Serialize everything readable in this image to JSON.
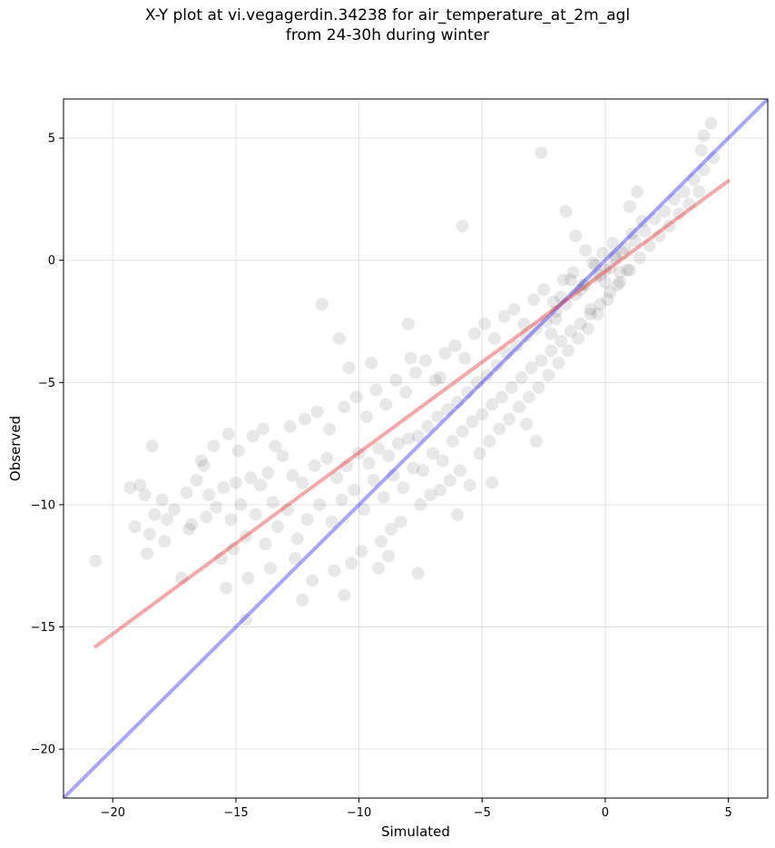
{
  "chart_data": {
    "type": "scatter",
    "title_lines": [
      "X-Y plot at vi.vegagerdin.34238 for air_temperature_at_2m_agl",
      "from 24-30h during winter"
    ],
    "xlabel": "Simulated",
    "ylabel": "Observed",
    "xlim": [
      -22,
      6.6
    ],
    "ylim": [
      -22,
      6.6
    ],
    "xticks": [
      -20,
      -15,
      -10,
      -5,
      0,
      5
    ],
    "yticks": [
      -20,
      -15,
      -10,
      -5,
      0,
      5
    ],
    "xtick_labels": [
      "−20",
      "−15",
      "−10",
      "−5",
      "0",
      "5"
    ],
    "ytick_labels": [
      "−20",
      "−15",
      "−10",
      "−5",
      "0",
      "5"
    ],
    "grid": true,
    "point_color": "#000000",
    "point_opacity": 0.09,
    "identity_line": {
      "color": "#0000ff",
      "x": [
        -22,
        6.6
      ],
      "y": [
        -22,
        6.6
      ]
    },
    "fit_line": {
      "color": "#ee2222",
      "x": [
        -20.7,
        5.0
      ],
      "y": [
        -15.8,
        3.25
      ]
    },
    "points": {
      "x": [
        -20.7,
        -19.3,
        -19.1,
        -18.9,
        -18.7,
        -18.5,
        -18.4,
        -18.3,
        -18.0,
        -17.8,
        -17.5,
        -17.2,
        -17.0,
        -16.8,
        -16.6,
        -16.3,
        -16.1,
        -15.8,
        -15.5,
        -15.2,
        -15.0,
        -14.8,
        -14.4,
        -14.0,
        -13.7,
        -13.5,
        -13.1,
        -12.7,
        -12.3,
        -11.8,
        -11.3,
        -10.9,
        -10.5,
        -10.0,
        -9.6,
        -9.2,
        -8.8,
        -8.4,
        -8.0,
        -7.6,
        -7.2,
        -6.8,
        -6.4,
        -6.0,
        -5.6,
        -5.2,
        -4.8,
        -4.4,
        -4.0,
        -3.6,
        -3.2,
        -2.8,
        -2.4,
        -2.0,
        -1.6,
        -1.2,
        -0.8,
        -0.4,
        0.0,
        0.4,
        0.8,
        1.2,
        1.6,
        2.0,
        2.4,
        2.8,
        3.2,
        3.6,
        4.0,
        4.4,
        -18.6,
        -17.9,
        -16.9,
        -16.2,
        -15.6,
        -15.1,
        -14.6,
        -14.2,
        -13.8,
        -13.3,
        -12.9,
        -12.5,
        -12.1,
        -11.6,
        -11.1,
        -10.7,
        -10.2,
        -9.8,
        -9.4,
        -9.0,
        -8.6,
        -8.2,
        -7.8,
        -7.4,
        -7.0,
        -6.6,
        -6.2,
        -5.8,
        -5.4,
        -5.0,
        -4.6,
        -4.2,
        -3.8,
        -3.4,
        -3.0,
        -2.6,
        -2.2,
        -1.8,
        -1.4,
        -1.0,
        -0.6,
        -0.2,
        0.2,
        0.6,
        1.0,
        1.4,
        1.8,
        2.2,
        2.6,
        3.0,
        3.4,
        3.8,
        -16.4,
        -15.9,
        -15.3,
        -14.9,
        -14.3,
        -13.9,
        -13.4,
        -12.8,
        -12.2,
        -11.7,
        -11.2,
        -10.6,
        -10.1,
        -9.7,
        -9.3,
        -8.9,
        -8.5,
        -8.1,
        -7.7,
        -7.3,
        -6.9,
        -6.5,
        -6.1,
        -5.7,
        -5.3,
        -4.9,
        -4.5,
        -4.1,
        -3.7,
        -3.3,
        -2.9,
        -2.5,
        -2.1,
        -1.7,
        -1.3,
        -0.9,
        -0.5,
        -0.1,
        0.3,
        0.7,
        1.1,
        1.5,
        -15.4,
        -14.5,
        -13.6,
        -12.6,
        -11.9,
        -11.0,
        -10.3,
        -9.9,
        -9.1,
        -8.7,
        -8.3,
        -7.5,
        -7.1,
        -6.7,
        -6.3,
        -5.9,
        -5.1,
        -4.7,
        -4.3,
        -3.9,
        -3.5,
        -3.1,
        -2.7,
        -2.3,
        -1.9,
        -1.5,
        -1.1,
        -0.7,
        -0.3,
        0.1,
        0.5,
        0.9,
        -11.5,
        -10.8,
        -10.4,
        -9.5,
        -8.0,
        -7.9,
        -6.7,
        -5.8,
        -2.6,
        -1.6,
        -1.2,
        -0.8,
        -0.4,
        -0.2,
        0.0,
        0.2,
        0.4,
        0.6,
        -1.8,
        -1.4,
        -1.0,
        -0.6,
        -2.0,
        -2.2,
        1.0,
        1.3,
        3.9,
        4.0,
        4.3,
        -14.6,
        -12.3,
        -10.6,
        -9.2,
        -8.8,
        -7.6,
        -6.0,
        -5.5,
        -4.6,
        -3.2,
        -2.8
      ],
      "y": [
        -12.3,
        -9.3,
        -10.9,
        -9.2,
        -9.6,
        -11.2,
        -7.6,
        -10.4,
        -9.8,
        -10.6,
        -10.2,
        -13.0,
        -9.5,
        -10.8,
        -9.0,
        -8.4,
        -9.6,
        -10.1,
        -9.3,
        -10.6,
        -9.1,
        -10.0,
        -8.9,
        -9.2,
        -8.7,
        -9.9,
        -8.0,
        -8.8,
        -9.1,
        -8.4,
        -8.1,
        -8.9,
        -8.4,
        -7.9,
        -8.3,
        -7.7,
        -8.0,
        -7.5,
        -7.3,
        -7.2,
        -6.8,
        -6.4,
        -6.1,
        -5.8,
        -5.4,
        -5.0,
        -4.7,
        -4.3,
        -3.8,
        -3.5,
        -3.1,
        -2.8,
        -2.5,
        -2.1,
        -1.8,
        -1.4,
        -1.0,
        -0.7,
        -0.4,
        0.1,
        0.5,
        0.8,
        1.2,
        1.7,
        2.0,
        2.5,
        2.8,
        3.3,
        3.7,
        4.2,
        -12.0,
        -11.5,
        -11.0,
        -10.5,
        -12.2,
        -11.8,
        -11.3,
        -10.4,
        -11.6,
        -10.9,
        -10.2,
        -11.4,
        -10.6,
        -10.0,
        -10.7,
        -9.8,
        -9.4,
        -10.2,
        -9.0,
        -9.7,
        -8.8,
        -9.3,
        -8.5,
        -8.6,
        -7.9,
        -8.2,
        -7.4,
        -7.0,
        -6.6,
        -6.3,
        -5.9,
        -5.6,
        -5.2,
        -4.8,
        -4.4,
        -4.1,
        -3.7,
        -3.3,
        -2.9,
        -2.6,
        -2.2,
        -1.8,
        -1.3,
        -0.9,
        -0.4,
        0.1,
        0.6,
        1.0,
        1.4,
        1.9,
        2.3,
        2.8,
        -8.2,
        -7.6,
        -7.1,
        -7.8,
        -7.2,
        -6.9,
        -7.6,
        -6.8,
        -6.5,
        -6.2,
        -6.9,
        -6.0,
        -5.6,
        -6.4,
        -5.3,
        -5.9,
        -4.9,
        -5.4,
        -4.6,
        -4.1,
        -4.9,
        -3.8,
        -3.5,
        -4.0,
        -3.0,
        -2.6,
        -3.2,
        -2.3,
        -2.0,
        -2.6,
        -1.6,
        -1.2,
        -1.7,
        -0.8,
        -0.5,
        -1.0,
        -0.1,
        0.3,
        0.7,
        0.3,
        1.1,
        1.6,
        -13.4,
        -13.0,
        -12.6,
        -12.2,
        -13.1,
        -12.7,
        -12.4,
        -11.9,
        -11.5,
        -11.0,
        -10.7,
        -10.0,
        -9.6,
        -9.4,
        -9.0,
        -8.6,
        -7.9,
        -7.4,
        -6.9,
        -6.5,
        -6.0,
        -5.6,
        -5.2,
        -4.7,
        -4.2,
        -3.7,
        -3.2,
        -2.8,
        -2.2,
        -1.6,
        -1.0,
        -0.4,
        -1.8,
        -3.2,
        -4.4,
        -4.2,
        -2.6,
        -4.0,
        -4.8,
        1.4,
        4.4,
        2.0,
        1.0,
        0.4,
        -0.2,
        -0.6,
        -0.9,
        -0.3,
        0.2,
        -0.5,
        -1.5,
        -0.8,
        -1.2,
        -2.0,
        -2.4,
        -3.0,
        2.2,
        2.8,
        4.5,
        5.1,
        5.6,
        -14.7,
        -13.9,
        -13.7,
        -12.6,
        -12.1,
        -12.8,
        -10.4,
        -9.2,
        -9.1,
        -6.7,
        -7.4
      ]
    }
  }
}
